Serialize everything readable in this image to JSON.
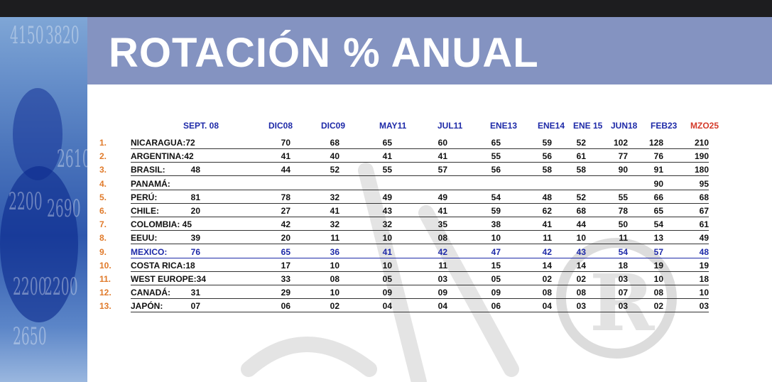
{
  "title": "ROTACIÓN % ANUAL",
  "side_numbers": [
    "4150",
    "3820",
    "2610",
    "2200",
    "2690",
    "2200",
    "2200",
    "2650"
  ],
  "columns": [
    "SEPT. 08",
    "DIC08",
    "DIC09",
    "MAY11",
    "JUL11",
    "ENE13",
    "ENE14",
    "ENE 15",
    "JUN18",
    "FEB23",
    "MZO25"
  ],
  "rows": [
    {
      "n": "1.",
      "country": "NICARAGUA:72",
      "v": [
        "70",
        "68",
        "65",
        "60",
        "65",
        "59",
        "52",
        "102",
        "128",
        "210"
      ]
    },
    {
      "n": "2.",
      "country": "ARGENTINA:42",
      "v": [
        "41",
        "40",
        "41",
        "41",
        "55",
        "56",
        "61",
        "77",
        "76",
        "190"
      ]
    },
    {
      "n": "3.",
      "country": "BRASIL:",
      "first": "48",
      "v": [
        "44",
        "52",
        "55",
        "57",
        "56",
        "58",
        "58",
        "90",
        "91",
        "180"
      ]
    },
    {
      "n": "4.",
      "country": "PANAMÁ:",
      "v": [
        "",
        "",
        "",
        "",
        "",
        "",
        "",
        "",
        "90",
        "95"
      ]
    },
    {
      "n": "5.",
      "country": "PERÚ:",
      "first": "81",
      "v": [
        "78",
        "32",
        "49",
        "49",
        "54",
        "48",
        "52",
        "55",
        "66",
        "68"
      ]
    },
    {
      "n": "6.",
      "country": "CHILE:",
      "first": "20",
      "v": [
        "27",
        "41",
        "43",
        "41",
        "59",
        "62",
        "68",
        "78",
        "65",
        "67"
      ]
    },
    {
      "n": "7.",
      "country": "COLOMBIA: 45",
      "v": [
        "42",
        "32",
        "32",
        "35",
        "38",
        "41",
        "44",
        "50",
        "54",
        "61"
      ]
    },
    {
      "n": "8.",
      "country": "EEUU:",
      "first": "39",
      "v": [
        "20",
        "11",
        "10",
        "08",
        "10",
        "11",
        "10",
        "11",
        "13",
        "49"
      ]
    },
    {
      "n": "9.",
      "country": "MEXICO:",
      "first": "76",
      "v": [
        "65",
        "36",
        "41",
        "42",
        "47",
        "42",
        "43",
        "54",
        "57",
        "48"
      ]
    },
    {
      "n": "10.",
      "country": "COSTA RICA:18",
      "v": [
        "17",
        "10",
        "10",
        "11",
        "15",
        "14",
        "14",
        "18",
        "19",
        "19"
      ]
    },
    {
      "n": "11.",
      "country": "WEST EUROPE:34",
      "v": [
        "33",
        "08",
        "05",
        "03",
        "05",
        "02",
        "02",
        "03",
        "10",
        "18"
      ]
    },
    {
      "n": "12.",
      "country": "CANADÁ:",
      "first": "31",
      "v": [
        "29",
        "10",
        "09",
        "09",
        "09",
        "08",
        "08",
        "07",
        "08",
        "10"
      ]
    },
    {
      "n": "13.",
      "country": "JAPÓN:",
      "first": "07",
      "v": [
        "06",
        "02",
        "04",
        "04",
        "06",
        "04",
        "03",
        "03",
        "02",
        "03"
      ]
    }
  ],
  "colors": {
    "banner": "#8493c1",
    "header_blue": "#1e2aa8",
    "header_red": "#d43a2a",
    "index_orange": "#e07a2a"
  }
}
